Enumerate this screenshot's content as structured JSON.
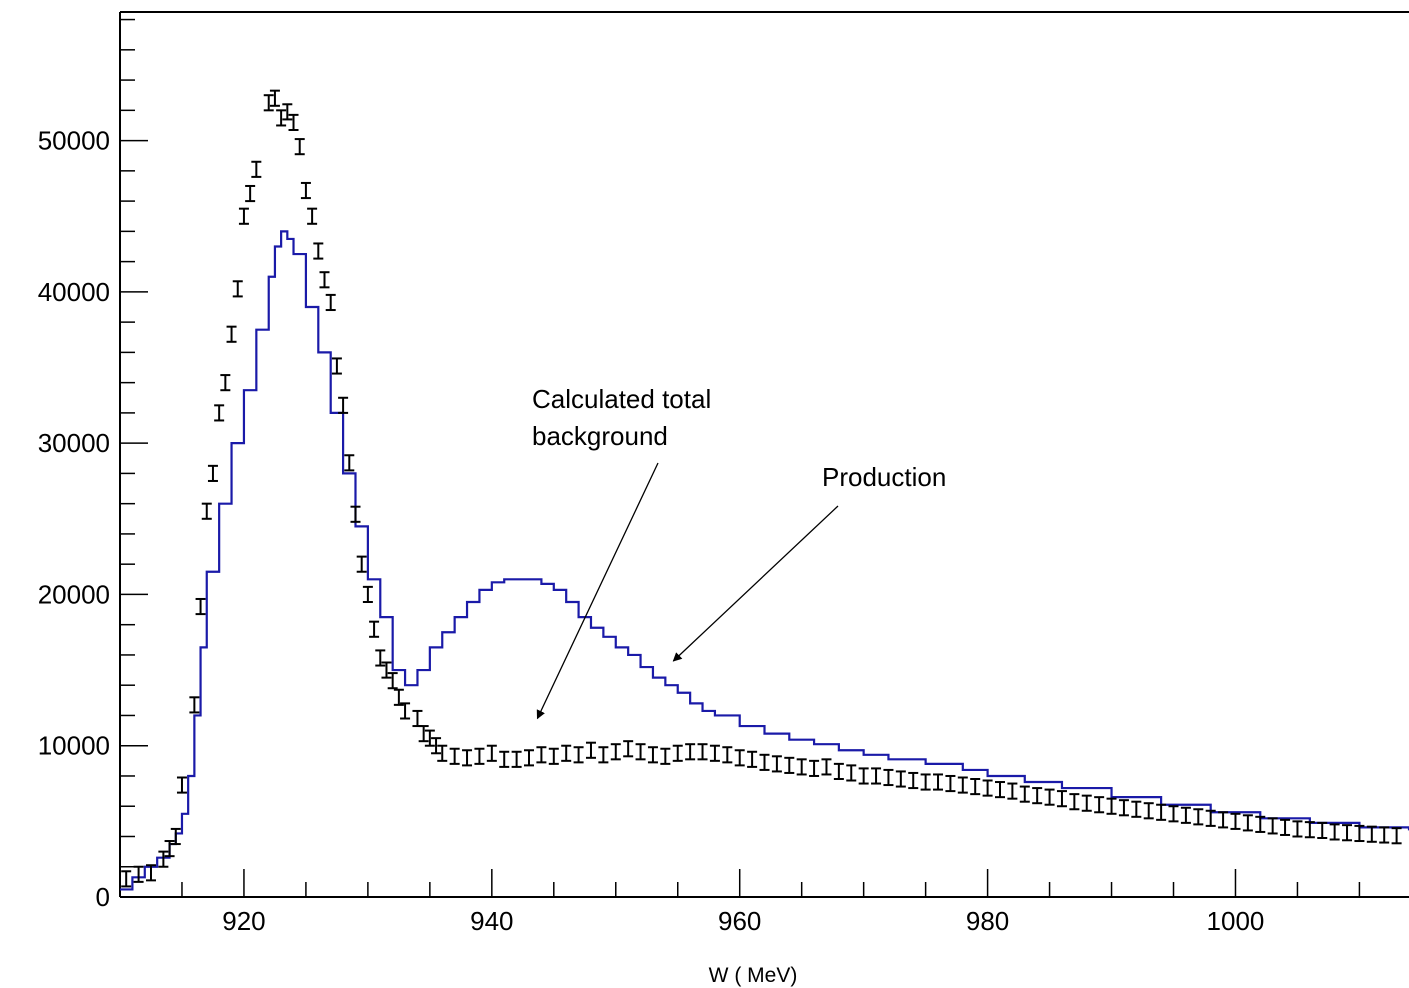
{
  "chart_data": {
    "type": "line",
    "title": "",
    "xlabel": "W ( MeV)",
    "ylabel": "",
    "xlim": [
      910,
      1014
    ],
    "ylim": [
      0,
      58500
    ],
    "x_ticks": [
      920,
      940,
      960,
      980,
      1000
    ],
    "x_tick_labels": [
      "920",
      "940",
      "960",
      "980",
      "1000"
    ],
    "y_ticks": [
      0,
      10000,
      20000,
      30000,
      40000,
      50000
    ],
    "y_tick_labels": [
      "0",
      "10000",
      "20000",
      "30000",
      "40000",
      "50000"
    ],
    "grid": false,
    "legend": "none",
    "series": [
      {
        "kind": "histogram",
        "color": "#1a1aa8",
        "points": [
          [
            910,
            500
          ],
          [
            911,
            1300
          ],
          [
            912,
            2000
          ],
          [
            913,
            2600
          ],
          [
            914,
            3500
          ],
          [
            914.5,
            4200
          ],
          [
            915,
            5500
          ],
          [
            915.5,
            8000
          ],
          [
            916,
            12000
          ],
          [
            916.5,
            16500
          ],
          [
            917,
            21500
          ],
          [
            918,
            26000
          ],
          [
            919,
            30000
          ],
          [
            920,
            33500
          ],
          [
            921,
            37500
          ],
          [
            922,
            41000
          ],
          [
            922.5,
            43000
          ],
          [
            923,
            44000
          ],
          [
            923.5,
            43500
          ],
          [
            924,
            42500
          ],
          [
            925,
            39000
          ],
          [
            926,
            36000
          ],
          [
            927,
            32000
          ],
          [
            928,
            28000
          ],
          [
            929,
            24500
          ],
          [
            930,
            21000
          ],
          [
            931,
            18500
          ],
          [
            932,
            15000
          ],
          [
            933,
            14000
          ],
          [
            934,
            15000
          ],
          [
            935,
            16500
          ],
          [
            936,
            17500
          ],
          [
            937,
            18500
          ],
          [
            938,
            19500
          ],
          [
            939,
            20300
          ],
          [
            940,
            20800
          ],
          [
            941,
            21000
          ],
          [
            942,
            21000
          ],
          [
            943,
            21000
          ],
          [
            944,
            20700
          ],
          [
            945,
            20300
          ],
          [
            946,
            19500
          ],
          [
            947,
            18500
          ],
          [
            948,
            17800
          ],
          [
            949,
            17200
          ],
          [
            950,
            16500
          ],
          [
            951,
            16000
          ],
          [
            952,
            15200
          ],
          [
            953,
            14500
          ],
          [
            954,
            14000
          ],
          [
            955,
            13500
          ],
          [
            956,
            12800
          ],
          [
            957,
            12300
          ],
          [
            958,
            12000
          ],
          [
            960,
            11300
          ],
          [
            962,
            10800
          ],
          [
            964,
            10400
          ],
          [
            966,
            10100
          ],
          [
            968,
            9700
          ],
          [
            970,
            9400
          ],
          [
            972,
            9100
          ],
          [
            975,
            8800
          ],
          [
            978,
            8400
          ],
          [
            980,
            8000
          ],
          [
            983,
            7600
          ],
          [
            986,
            7200
          ],
          [
            990,
            6600
          ],
          [
            994,
            6100
          ],
          [
            998,
            5600
          ],
          [
            1002,
            5200
          ],
          [
            1006,
            4900
          ],
          [
            1010,
            4600
          ],
          [
            1014,
            4400
          ]
        ]
      },
      {
        "kind": "points_with_errors",
        "color": "#000000",
        "points": [
          [
            910.5,
            1200
          ],
          [
            911.5,
            1500
          ],
          [
            912.5,
            1600
          ],
          [
            913.5,
            2500
          ],
          [
            914,
            3200
          ],
          [
            914.5,
            4000
          ],
          [
            915,
            7400
          ],
          [
            916,
            12700
          ],
          [
            916.5,
            19200
          ],
          [
            917,
            25500
          ],
          [
            917.5,
            28000
          ],
          [
            918,
            32000
          ],
          [
            918.5,
            34000
          ],
          [
            919,
            37200
          ],
          [
            919.5,
            40200
          ],
          [
            920,
            45000
          ],
          [
            920.5,
            46500
          ],
          [
            921,
            48100
          ],
          [
            922,
            52500
          ],
          [
            922.5,
            52800
          ],
          [
            923,
            51500
          ],
          [
            923.5,
            51900
          ],
          [
            924,
            51200
          ],
          [
            924.5,
            49600
          ],
          [
            925,
            46700
          ],
          [
            925.5,
            45000
          ],
          [
            926,
            42700
          ],
          [
            926.5,
            40800
          ],
          [
            927,
            39300
          ],
          [
            927.5,
            35100
          ],
          [
            928,
            32500
          ],
          [
            928.5,
            28700
          ],
          [
            929,
            25300
          ],
          [
            929.5,
            22000
          ],
          [
            930,
            20000
          ],
          [
            930.5,
            17700
          ],
          [
            931,
            15800
          ],
          [
            931.5,
            15000
          ],
          [
            932,
            14300
          ],
          [
            932.5,
            13200
          ],
          [
            933,
            12300
          ],
          [
            934,
            11800
          ],
          [
            934.5,
            10800
          ],
          [
            935,
            10500
          ],
          [
            935.5,
            10000
          ],
          [
            936,
            9500
          ],
          [
            937,
            9300
          ],
          [
            938,
            9200
          ],
          [
            939,
            9300
          ],
          [
            940,
            9500
          ],
          [
            941,
            9100
          ],
          [
            942,
            9100
          ],
          [
            943,
            9200
          ],
          [
            944,
            9400
          ],
          [
            945,
            9300
          ],
          [
            946,
            9500
          ],
          [
            947,
            9400
          ],
          [
            948,
            9700
          ],
          [
            949,
            9400
          ],
          [
            950,
            9600
          ],
          [
            951,
            9800
          ],
          [
            952,
            9600
          ],
          [
            953,
            9400
          ],
          [
            954,
            9300
          ],
          [
            955,
            9500
          ],
          [
            956,
            9600
          ],
          [
            957,
            9600
          ],
          [
            958,
            9500
          ],
          [
            959,
            9400
          ],
          [
            960,
            9200
          ],
          [
            961,
            9100
          ],
          [
            962,
            8900
          ],
          [
            963,
            8800
          ],
          [
            964,
            8700
          ],
          [
            965,
            8600
          ],
          [
            966,
            8500
          ],
          [
            967,
            8600
          ],
          [
            968,
            8300
          ],
          [
            969,
            8200
          ],
          [
            970,
            8000
          ],
          [
            971,
            8000
          ],
          [
            972,
            7900
          ],
          [
            973,
            7800
          ],
          [
            974,
            7700
          ],
          [
            975,
            7600
          ],
          [
            976,
            7600
          ],
          [
            977,
            7500
          ],
          [
            978,
            7400
          ],
          [
            979,
            7300
          ],
          [
            980,
            7200
          ],
          [
            981,
            7100
          ],
          [
            982,
            7000
          ],
          [
            983,
            6800
          ],
          [
            984,
            6700
          ],
          [
            985,
            6600
          ],
          [
            986,
            6500
          ],
          [
            987,
            6300
          ],
          [
            988,
            6200
          ],
          [
            989,
            6100
          ],
          [
            990,
            6000
          ],
          [
            991,
            5900
          ],
          [
            992,
            5800
          ],
          [
            993,
            5700
          ],
          [
            994,
            5600
          ],
          [
            995,
            5500
          ],
          [
            996,
            5400
          ],
          [
            997,
            5300
          ],
          [
            998,
            5200
          ],
          [
            999,
            5100
          ],
          [
            1000,
            5000
          ],
          [
            1001,
            4900
          ],
          [
            1002,
            4800
          ],
          [
            1003,
            4700
          ],
          [
            1004,
            4600
          ],
          [
            1005,
            4500
          ],
          [
            1006,
            4450
          ],
          [
            1007,
            4400
          ],
          [
            1008,
            4300
          ],
          [
            1009,
            4250
          ],
          [
            1010,
            4200
          ],
          [
            1011,
            4150
          ],
          [
            1012,
            4100
          ],
          [
            1013,
            4050
          ]
        ],
        "error": 500
      }
    ],
    "annotations": [
      {
        "name": "annotation-background",
        "lines": [
          "Calculated total",
          "background"
        ],
        "arrow_to": [
          944,
          11800
        ]
      },
      {
        "name": "annotation-production",
        "lines": [
          "Production"
        ],
        "arrow_to": [
          954,
          15600
        ]
      }
    ]
  }
}
